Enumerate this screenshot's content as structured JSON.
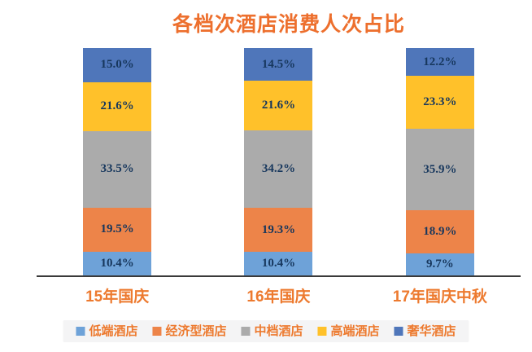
{
  "header": {
    "title": "各档次酒店消费人次占比"
  },
  "colors": {
    "title_text": "#ED6F2D",
    "axis_label_text": "#ED7A2F",
    "segment_value_text": "#17375D",
    "axis_line": "#3A3A3A",
    "legend_background": "#F4F4F5",
    "legend_text": "#ED7A2F"
  },
  "chart_data": {
    "type": "bar",
    "stacked": true,
    "title": "各档次酒店消费人次占比",
    "categories": [
      "15年国庆",
      "16年国庆",
      "17年国庆中秋"
    ],
    "series": [
      {
        "name": "低端酒店",
        "color": "#6EA2D8",
        "values": [
          10.4,
          10.4,
          9.7
        ]
      },
      {
        "name": "经济型酒店",
        "color": "#ED8449",
        "values": [
          19.5,
          19.3,
          18.9
        ]
      },
      {
        "name": "中档酒店",
        "color": "#ABABAB",
        "values": [
          33.5,
          34.2,
          35.9
        ]
      },
      {
        "name": "高端酒店",
        "color": "#FFC12A",
        "values": [
          21.6,
          21.6,
          23.3
        ]
      },
      {
        "name": "奢华酒店",
        "color": "#4F76BA",
        "values": [
          15.0,
          14.5,
          12.2
        ]
      }
    ],
    "value_suffix": "%",
    "value_labels": [
      [
        "10.4%",
        "19.5%",
        "33.5%",
        "21.6%",
        "15.0%"
      ],
      [
        "10.4%",
        "19.3%",
        "34.2%",
        "21.6%",
        "14.5%"
      ],
      [
        "9.7%",
        "18.9%",
        "35.9%",
        "23.3%",
        "12.2%"
      ]
    ],
    "xlabel": "",
    "ylabel": "",
    "ylim": [
      0,
      100
    ],
    "grid": false,
    "legend_position": "bottom",
    "legend_entries": [
      "低端酒店",
      "经济型酒店",
      "中档酒店",
      "高端酒店",
      "奢华酒店"
    ]
  }
}
